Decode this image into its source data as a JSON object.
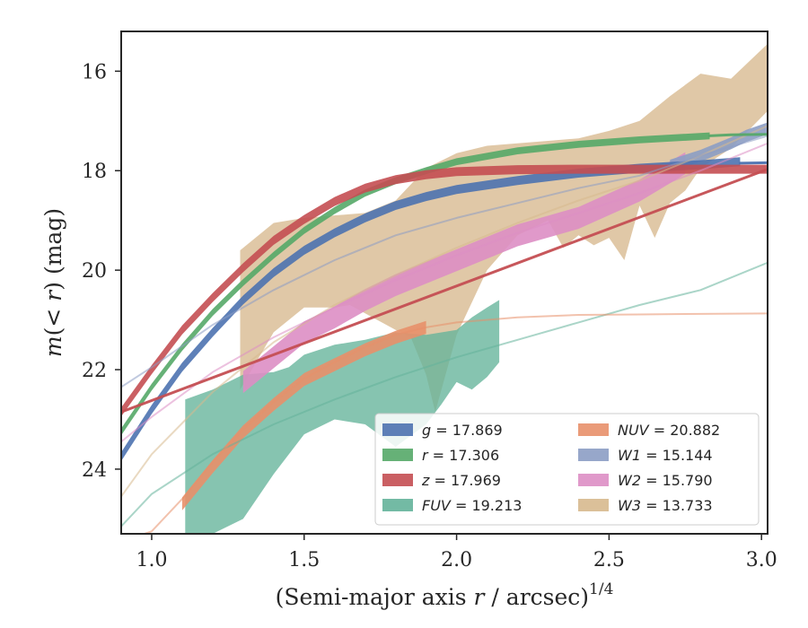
{
  "chart_data": {
    "type": "line",
    "xlabel": "(Semi-major axis r / arcsec)",
    "xlabel_prefix": "(Semi-major axis ",
    "xlabel_var": "r",
    "xlabel_suffix": " / arcsec)",
    "xlabel_exp": "1/4",
    "ylabel": "m(< r) (mag)",
    "ylabel_prefix": "m",
    "ylabel_mid": "(< ",
    "ylabel_var": "r",
    "ylabel_suffix": ") (mag)",
    "xlim": [
      0.9,
      3.02
    ],
    "ylim": [
      25.3,
      15.2
    ],
    "y_inverted": true,
    "xticks": [
      1.0,
      1.5,
      2.0,
      2.5,
      3.0
    ],
    "xtick_labels": [
      "1.0",
      "1.5",
      "2.0",
      "2.5",
      "3.0"
    ],
    "yticks": [
      16,
      18,
      20,
      22,
      24
    ],
    "ytick_labels": [
      "16",
      "18",
      "20",
      "22",
      "24"
    ],
    "grid": false,
    "legend_position": "lower-right",
    "legend": [
      {
        "var": "g",
        "value": " = 17.869",
        "color": "#4c72b0"
      },
      {
        "var": "r",
        "value": " = 17.306",
        "color": "#55a868"
      },
      {
        "var": "z",
        "value": " = 17.969",
        "color": "#c44e52"
      },
      {
        "var": "FUV",
        "value": " = 19.213",
        "color": "#64b39a"
      },
      {
        "var": "NUV",
        "value": " = 20.882",
        "color": "#e8906a"
      },
      {
        "var": "W1",
        "value": " = 15.144",
        "color": "#8c9dc4"
      },
      {
        "var": "W2",
        "value": " = 15.790",
        "color": "#dd8ec4"
      },
      {
        "var": "W3",
        "value": " = 13.733",
        "color": "#d7b98e"
      }
    ],
    "series": [
      {
        "name": "g",
        "color": "#4c72b0",
        "band": {
          "x": [
            0.9,
            1.0,
            1.1,
            1.2,
            1.3,
            1.4,
            1.5,
            1.6,
            1.7,
            1.8,
            1.9,
            2.0,
            2.2,
            2.4,
            2.6,
            2.8,
            2.93
          ],
          "y": [
            23.75,
            22.8,
            21.95,
            21.25,
            20.6,
            20.05,
            19.6,
            19.25,
            18.95,
            18.7,
            18.52,
            18.38,
            18.2,
            18.05,
            17.95,
            17.88,
            17.82
          ],
          "w": 0.09
        },
        "model": {
          "x": [
            2.93,
            3.02
          ],
          "y": [
            17.85,
            17.84
          ]
        }
      },
      {
        "name": "r",
        "color": "#55a868",
        "band": {
          "x": [
            0.9,
            1.0,
            1.1,
            1.2,
            1.3,
            1.4,
            1.5,
            1.6,
            1.7,
            1.8,
            1.9,
            2.0,
            2.2,
            2.4,
            2.6,
            2.83
          ],
          "y": [
            23.25,
            22.35,
            21.55,
            20.85,
            20.25,
            19.7,
            19.2,
            18.8,
            18.45,
            18.2,
            18.0,
            17.82,
            17.6,
            17.47,
            17.38,
            17.3
          ],
          "w": 0.07
        },
        "model": {
          "x": [
            2.83,
            2.9,
            3.02
          ],
          "y": [
            17.3,
            17.28,
            17.27
          ]
        }
      },
      {
        "name": "z",
        "color": "#c44e52",
        "band": {
          "x": [
            0.9,
            1.0,
            1.1,
            1.2,
            1.3,
            1.4,
            1.5,
            1.6,
            1.7,
            1.8,
            1.9,
            2.0,
            2.2,
            2.4,
            2.6,
            2.8,
            3.02
          ],
          "y": [
            22.85,
            22.0,
            21.2,
            20.55,
            19.95,
            19.4,
            18.98,
            18.62,
            18.35,
            18.18,
            18.08,
            18.02,
            17.98,
            17.97,
            17.97,
            17.97,
            17.97
          ],
          "w": 0.09
        },
        "model": {
          "x": [
            0.9,
            3.02
          ],
          "y": [
            22.85,
            17.97
          ]
        }
      },
      {
        "name": "FUV",
        "color": "#64b39a",
        "band_upper": {
          "x": [
            1.11,
            1.2,
            1.3,
            1.4,
            1.45,
            1.5,
            1.6,
            1.7,
            1.8,
            1.9,
            2.0,
            2.05,
            2.1,
            2.14
          ],
          "y": [
            22.6,
            22.4,
            22.1,
            22.05,
            21.95,
            21.7,
            21.5,
            21.4,
            21.25,
            21.3,
            21.2,
            20.95,
            20.75,
            20.6
          ]
        },
        "band_lower": {
          "x": [
            1.11,
            1.2,
            1.3,
            1.4,
            1.5,
            1.6,
            1.7,
            1.8,
            1.9,
            1.95,
            2.0,
            2.05,
            2.1,
            2.14
          ],
          "y": [
            25.4,
            25.3,
            25.0,
            24.1,
            23.3,
            23.0,
            23.1,
            23.55,
            23.1,
            22.7,
            22.25,
            22.4,
            22.15,
            21.85
          ]
        },
        "model": {
          "x": [
            0.9,
            1.0,
            1.2,
            1.4,
            1.6,
            1.8,
            2.0,
            2.2,
            2.4,
            2.6,
            2.8,
            3.02
          ],
          "y": [
            25.15,
            24.5,
            23.7,
            23.1,
            22.6,
            22.15,
            21.75,
            21.4,
            21.05,
            20.7,
            20.4,
            19.85
          ]
        }
      },
      {
        "name": "NUV",
        "color": "#e8906a",
        "band": {
          "x": [
            1.1,
            1.2,
            1.3,
            1.4,
            1.5,
            1.6,
            1.7,
            1.8,
            1.9
          ],
          "y": [
            24.7,
            23.95,
            23.25,
            22.7,
            22.2,
            21.9,
            21.6,
            21.35,
            21.15
          ],
          "w": 0.13
        },
        "model": {
          "x": [
            0.93,
            1.0,
            1.1,
            1.2,
            1.3,
            1.4,
            1.5,
            1.6,
            1.7,
            1.8,
            1.9,
            2.0,
            2.2,
            2.4,
            2.6,
            2.8,
            3.02
          ],
          "y": [
            25.4,
            25.25,
            24.6,
            23.85,
            23.2,
            22.65,
            22.18,
            21.85,
            21.55,
            21.3,
            21.15,
            21.05,
            20.95,
            20.9,
            20.89,
            20.88,
            20.87
          ]
        }
      },
      {
        "name": "W1",
        "color": "#8c9dc4",
        "band": {
          "x": [
            2.7,
            2.8,
            2.9,
            2.95,
            3.02
          ],
          "y": [
            17.9,
            17.7,
            17.45,
            17.3,
            17.15
          ],
          "w": 0.12
        },
        "model": {
          "x": [
            0.9,
            1.0,
            1.2,
            1.4,
            1.6,
            1.8,
            2.0,
            2.2,
            2.4,
            2.6,
            2.8,
            3.02
          ],
          "y": [
            22.35,
            21.95,
            21.1,
            20.4,
            19.8,
            19.3,
            18.95,
            18.65,
            18.35,
            18.1,
            17.7,
            17.3
          ]
        }
      },
      {
        "name": "W2",
        "color": "#dd8ec4",
        "band": {
          "x": [
            1.3,
            1.4,
            1.5,
            1.6,
            1.7,
            1.8,
            1.9,
            2.0,
            2.2,
            2.4,
            2.6,
            2.75
          ],
          "y": [
            22.25,
            21.75,
            21.25,
            20.95,
            20.6,
            20.3,
            20.05,
            19.8,
            19.3,
            18.95,
            18.4,
            17.85
          ],
          "w": 0.22
        },
        "model": {
          "x": [
            0.9,
            1.0,
            1.2,
            1.4,
            1.6,
            1.8,
            2.0,
            2.2,
            2.4,
            2.6,
            2.8,
            3.02
          ],
          "y": [
            23.45,
            22.95,
            22.05,
            21.35,
            20.75,
            20.2,
            19.7,
            19.25,
            18.85,
            18.45,
            18.0,
            17.45
          ]
        }
      },
      {
        "name": "W3",
        "color": "#d7b98e",
        "band_upper": {
          "x": [
            1.29,
            1.4,
            1.5,
            1.6,
            1.7,
            1.8,
            1.9,
            2.0,
            2.1,
            2.2,
            2.3,
            2.4,
            2.5,
            2.6,
            2.7,
            2.8,
            2.9,
            3.02
          ],
          "y": [
            19.6,
            19.05,
            18.95,
            18.9,
            18.85,
            18.6,
            17.95,
            17.65,
            17.5,
            17.45,
            17.4,
            17.35,
            17.2,
            17.0,
            16.5,
            16.05,
            16.15,
            15.45
          ]
        },
        "band_lower": {
          "x": [
            1.29,
            1.4,
            1.5,
            1.6,
            1.65,
            1.8,
            1.85,
            1.9,
            1.93,
            2.0,
            2.1,
            2.2,
            2.3,
            2.35,
            2.4,
            2.45,
            2.5,
            2.55,
            2.6,
            2.65,
            2.7,
            2.75,
            2.8,
            2.9,
            3.02
          ],
          "y": [
            22.4,
            21.25,
            20.75,
            20.75,
            20.7,
            21.2,
            21.35,
            22.1,
            22.85,
            21.3,
            20.0,
            19.3,
            19.0,
            19.55,
            19.3,
            19.5,
            19.35,
            19.8,
            18.7,
            19.35,
            18.65,
            18.4,
            17.95,
            17.55,
            16.8
          ]
        },
        "model": {
          "x": [
            0.9,
            1.0,
            1.2,
            1.4,
            1.6,
            1.8,
            2.0,
            2.2,
            2.4,
            2.6,
            2.8,
            3.02
          ],
          "y": [
            24.55,
            23.7,
            22.45,
            21.45,
            20.7,
            20.1,
            19.55,
            19.05,
            18.6,
            18.2,
            17.7,
            17.1
          ]
        }
      }
    ]
  }
}
